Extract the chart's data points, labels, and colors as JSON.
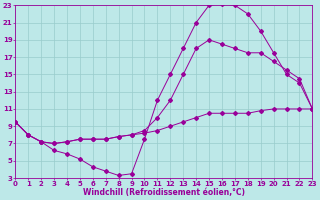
{
  "xlabel": "Windchill (Refroidissement éolien,°C)",
  "bg_color": "#bde8e8",
  "line_color": "#990099",
  "grid_color": "#99cccc",
  "xmin": 0,
  "xmax": 23,
  "ymin": 3,
  "ymax": 23,
  "line1_x": [
    0,
    1,
    2,
    3,
    4,
    5,
    6,
    7,
    8,
    9,
    10,
    11,
    12,
    13,
    14,
    15,
    16,
    17,
    18,
    19,
    20,
    21,
    22,
    23
  ],
  "line1_y": [
    9.5,
    8.0,
    7.2,
    6.2,
    5.8,
    5.2,
    4.3,
    3.8,
    3.3,
    3.5,
    7.5,
    12.0,
    15.0,
    18.0,
    21.0,
    23.0,
    23.2,
    23.0,
    22.0,
    20.0,
    17.5,
    15.0,
    14.0,
    11.0
  ],
  "line2_x": [
    0,
    1,
    2,
    3,
    4,
    5,
    6,
    7,
    8,
    9,
    10,
    11,
    12,
    13,
    14,
    15,
    16,
    17,
    18,
    19,
    20,
    21,
    22,
    23
  ],
  "line2_y": [
    9.5,
    8.0,
    7.2,
    7.0,
    7.2,
    7.5,
    7.5,
    7.5,
    7.8,
    8.0,
    8.2,
    8.5,
    9.0,
    9.5,
    10.0,
    10.5,
    10.5,
    10.5,
    10.5,
    10.8,
    11.0,
    11.0,
    11.0,
    11.0
  ],
  "line3_x": [
    0,
    1,
    2,
    3,
    4,
    5,
    6,
    7,
    8,
    9,
    10,
    11,
    12,
    13,
    14,
    15,
    16,
    17,
    18,
    19,
    20,
    21,
    22,
    23
  ],
  "line3_y": [
    9.5,
    8.0,
    7.2,
    7.0,
    7.2,
    7.5,
    7.5,
    7.5,
    7.8,
    8.0,
    8.5,
    10.0,
    12.0,
    15.0,
    18.0,
    19.0,
    18.5,
    18.0,
    17.5,
    17.5,
    16.5,
    15.5,
    14.5,
    11.0
  ],
  "yticks": [
    3,
    5,
    7,
    9,
    11,
    13,
    15,
    17,
    19,
    21,
    23
  ],
  "xticks": [
    0,
    1,
    2,
    3,
    4,
    5,
    6,
    7,
    8,
    9,
    10,
    11,
    12,
    13,
    14,
    15,
    16,
    17,
    18,
    19,
    20,
    21,
    22,
    23
  ],
  "tick_fontsize": 5,
  "xlabel_fontsize": 5.5
}
